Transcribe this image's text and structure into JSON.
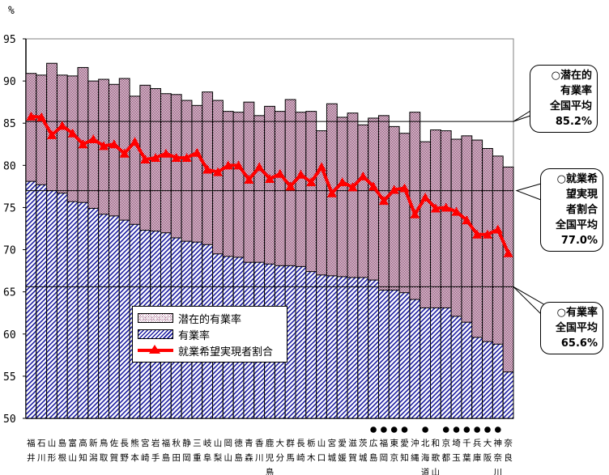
{
  "chart_data": {
    "type": "bar",
    "unit_label": "%",
    "ylim": [
      50,
      95
    ],
    "yticks": [
      50,
      55,
      60,
      65,
      70,
      75,
      80,
      85,
      90,
      95
    ],
    "grid": "national-average reference lines",
    "legend_placement": "lower-left inside plot",
    "categories": [
      [
        "福",
        "井"
      ],
      [
        "石",
        "川"
      ],
      [
        "山",
        "形"
      ],
      [
        "島",
        "根"
      ],
      [
        "富",
        "山"
      ],
      [
        "高",
        "知"
      ],
      [
        "新",
        "潟"
      ],
      [
        "鳥",
        "取"
      ],
      [
        "佐",
        "賀"
      ],
      [
        "長",
        "野"
      ],
      [
        "熊",
        "本"
      ],
      [
        "宮",
        "崎"
      ],
      [
        "岩",
        "手"
      ],
      [
        "福",
        "島"
      ],
      [
        "秋",
        "田"
      ],
      [
        "静",
        "岡"
      ],
      [
        "三",
        "重"
      ],
      [
        "岐",
        "阜"
      ],
      [
        "山",
        "梨"
      ],
      [
        "岡",
        "山"
      ],
      [
        "徳",
        "島"
      ],
      [
        "青",
        "森"
      ],
      [
        "香",
        "川"
      ],
      [
        "鹿",
        "児",
        "島"
      ],
      [
        "大",
        "分"
      ],
      [
        "群",
        "馬"
      ],
      [
        "長",
        "崎"
      ],
      [
        "栃",
        "木"
      ],
      [
        "山",
        "口"
      ],
      [
        "宮",
        "城"
      ],
      [
        "愛",
        "媛"
      ],
      [
        "滋",
        "賀"
      ],
      [
        "茨",
        "城"
      ],
      [
        "広",
        "島"
      ],
      [
        "福",
        "岡"
      ],
      [
        "東",
        "京"
      ],
      [
        "愛",
        "知"
      ],
      [
        "沖",
        "縄"
      ],
      [
        "北",
        "海",
        "道"
      ],
      [
        "和",
        "歌",
        "山"
      ],
      [
        "京",
        "都"
      ],
      [
        "埼",
        "玉"
      ],
      [
        "千",
        "葉"
      ],
      [
        "兵",
        "庫"
      ],
      [
        "大",
        "阪"
      ],
      [
        "神",
        "奈",
        "川"
      ],
      [
        "奈",
        "良"
      ]
    ],
    "marked_categories_symbol": "●",
    "marked": [
      false,
      false,
      false,
      false,
      false,
      false,
      false,
      false,
      false,
      false,
      false,
      false,
      false,
      false,
      false,
      false,
      false,
      false,
      false,
      false,
      false,
      false,
      false,
      false,
      false,
      false,
      false,
      false,
      false,
      false,
      false,
      false,
      false,
      true,
      true,
      true,
      true,
      false,
      true,
      false,
      true,
      true,
      true,
      true,
      true,
      true,
      false
    ],
    "series": [
      {
        "name": "潜在的有業率",
        "kind": "bar",
        "values": [
          90.9,
          90.7,
          92.1,
          90.7,
          90.6,
          91.6,
          90.0,
          90.2,
          89.6,
          90.3,
          88.2,
          89.5,
          89.1,
          88.5,
          88.4,
          87.7,
          87.1,
          88.7,
          87.7,
          86.4,
          86.3,
          87.5,
          85.9,
          87.0,
          86.4,
          87.8,
          86.3,
          86.4,
          84.1,
          87.3,
          85.7,
          86.2,
          84.8,
          85.6,
          85.9,
          84.6,
          83.8,
          86.3,
          82.8,
          84.2,
          84.1,
          83.1,
          83.5,
          83.0,
          82.0,
          81.1,
          79.8
        ]
      },
      {
        "name": "有業率",
        "kind": "bar",
        "values": [
          78.1,
          77.7,
          77.0,
          76.7,
          75.7,
          75.6,
          74.9,
          74.2,
          74.0,
          73.5,
          73.0,
          72.3,
          72.2,
          72.0,
          71.4,
          71.0,
          70.9,
          70.6,
          69.5,
          69.2,
          69.1,
          68.5,
          68.5,
          68.3,
          68.1,
          68.1,
          68.0,
          67.4,
          67.0,
          66.9,
          66.8,
          66.7,
          66.7,
          66.4,
          65.2,
          65.2,
          64.9,
          64.1,
          63.1,
          63.1,
          63.1,
          62.1,
          61.4,
          59.6,
          59.1,
          58.8,
          55.5
        ]
      },
      {
        "name": "就業希望実現者割合",
        "kind": "line",
        "values": [
          85.8,
          85.7,
          83.6,
          84.7,
          83.8,
          82.5,
          83.1,
          82.3,
          82.5,
          81.4,
          82.8,
          80.7,
          80.9,
          81.4,
          80.9,
          80.9,
          81.5,
          79.5,
          79.2,
          80.0,
          80.0,
          78.3,
          79.8,
          78.4,
          79.0,
          77.5,
          78.9,
          78.0,
          79.8,
          76.7,
          78.0,
          77.4,
          78.7,
          77.5,
          75.8,
          77.1,
          77.3,
          74.2,
          76.2,
          74.9,
          75.0,
          74.5,
          73.5,
          71.8,
          71.8,
          72.4,
          69.6
        ]
      }
    ],
    "reference_lines": [
      {
        "name": "潜在的有業率 全国平均",
        "value": 85.2
      },
      {
        "name": "就業希望実現者割合 全国平均",
        "value": 77.0
      },
      {
        "name": "有業率 全国平均",
        "value": 65.6
      }
    ],
    "annotations": [
      {
        "text": "○潜在的\n有業率\n全国平均\n85.2%",
        "points_to": 85.2
      },
      {
        "text": "○就業希\n望実現\n者割合\n全国平均\n77.0%",
        "points_to": 77.0
      },
      {
        "text": "○有業率\n全国平均\n65.6%",
        "points_to": 65.6
      }
    ],
    "colors": {
      "latent": "#8a3a6a",
      "employment": "#1a1aa0",
      "line": "#ff0000",
      "reference": "#000000"
    }
  },
  "legend": {
    "latent": "潜在的有業率",
    "employment": "有業率",
    "line": "就業希望実現者割合"
  }
}
